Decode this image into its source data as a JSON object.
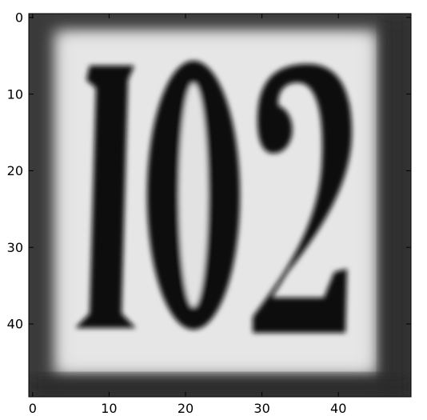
{
  "image": {
    "description_text": "",
    "number_shown": "102",
    "colormap": "gray"
  },
  "axes": {
    "x_ticks": [
      "0",
      "10",
      "20",
      "30",
      "40"
    ],
    "y_ticks": [
      "0",
      "10",
      "20",
      "30",
      "40"
    ],
    "x_range": [
      -0.5,
      49.5
    ],
    "y_range": [
      -0.5,
      49.5
    ]
  }
}
